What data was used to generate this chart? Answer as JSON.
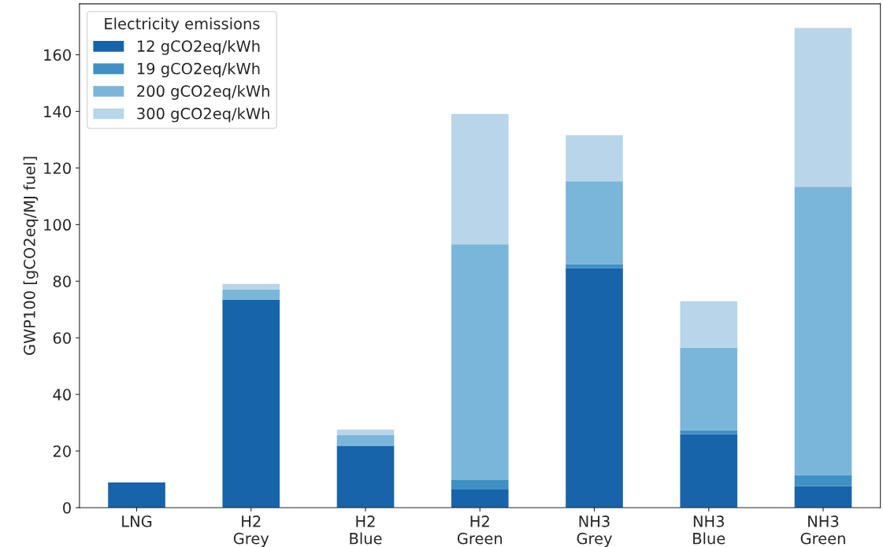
{
  "chart_data": {
    "type": "bar",
    "stacked": true,
    "categories": [
      "LNG",
      "H2\nGrey",
      "H2\nBlue",
      "H2\nGreen",
      "NH3\nGrey",
      "NH3\nBlue",
      "NH3\nGreen"
    ],
    "ylabel": "GWP100 [gCO2eq/MJ fuel]",
    "legend_title": "Electricity emissions",
    "series": [
      {
        "name": "12 gCO2eq/kWh",
        "color": "#1764ab",
        "values": [
          8.9,
          73.5,
          21.8,
          6.4,
          84.6,
          25.9,
          7.6
        ]
      },
      {
        "name": "19 gCO2eq/kWh",
        "color": "#4090c5",
        "values": [
          0,
          0,
          0.3,
          3.3,
          1.4,
          1.4,
          3.9
        ]
      },
      {
        "name": "200 gCO2eq/kWh",
        "color": "#7ab6d9",
        "values": [
          0,
          3.6,
          3.5,
          83.4,
          29.3,
          29.2,
          101.9
        ]
      },
      {
        "name": "300 gCO2eq/kWh",
        "color": "#b8d5ea",
        "values": [
          0,
          1.9,
          2.0,
          46.0,
          16.3,
          16.4,
          56.1
        ]
      }
    ],
    "ylim": [
      0,
      178
    ],
    "yticks": [
      0,
      20,
      40,
      60,
      80,
      100,
      120,
      140,
      160
    ],
    "grid": false,
    "legend": "top left"
  }
}
